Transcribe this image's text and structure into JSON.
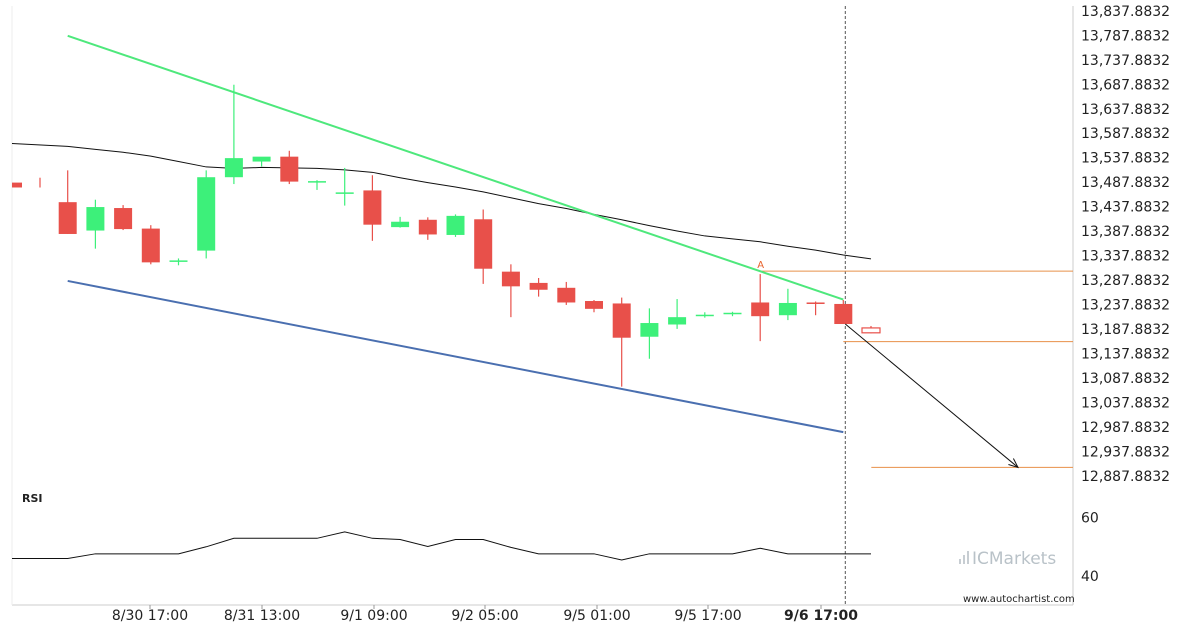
{
  "chart_data": {
    "type": "candlestick",
    "main": {
      "y_ticks": [
        "13,837.8832",
        "13,787.8832",
        "13,737.8832",
        "13,687.8832",
        "13,637.8832",
        "13,587.8832",
        "13,537.8832",
        "13,487.8832",
        "13,437.8832",
        "13,387.8832",
        "13,337.8832",
        "13,287.8832",
        "13,237.8832",
        "13,187.8832",
        "13,137.8832",
        "13,087.8832",
        "13,037.8832",
        "12,987.8832",
        "12,937.8832",
        "12,887.8832"
      ],
      "ylim": [
        12862.88,
        13847.88
      ],
      "candles": [
        {
          "o": 13487,
          "h": 13497,
          "l": 13477,
          "c": 13477
        },
        {
          "o": 13447,
          "h": 13512,
          "l": 13382,
          "c": 13382
        },
        {
          "o": 13389,
          "h": 13452,
          "l": 13352,
          "c": 13437
        },
        {
          "o": 13435,
          "h": 13441,
          "l": 13390,
          "c": 13392
        },
        {
          "o": 13393,
          "h": 13400,
          "l": 13320,
          "c": 13324
        },
        {
          "o": 13325,
          "h": 13332,
          "l": 13318,
          "c": 13328
        },
        {
          "o": 13348,
          "h": 13512,
          "l": 13332,
          "c": 13498
        },
        {
          "o": 13498,
          "h": 13687,
          "l": 13484,
          "c": 13537
        },
        {
          "o": 13530,
          "h": 13535,
          "l": 13520,
          "c": 13540
        },
        {
          "o": 13540,
          "h": 13552,
          "l": 13484,
          "c": 13489
        },
        {
          "o": 13488,
          "h": 13492,
          "l": 13472,
          "c": 13490
        },
        {
          "o": 13466,
          "h": 13517,
          "l": 13440,
          "c": 13467
        },
        {
          "o": 13471,
          "h": 13502,
          "l": 13368,
          "c": 13401
        },
        {
          "o": 13396,
          "h": 13417,
          "l": 13395,
          "c": 13407
        },
        {
          "o": 13411,
          "h": 13416,
          "l": 13370,
          "c": 13381
        },
        {
          "o": 13380,
          "h": 13422,
          "l": 13376,
          "c": 13419
        },
        {
          "o": 13412,
          "h": 13432,
          "l": 13280,
          "c": 13311
        },
        {
          "o": 13305,
          "h": 13320,
          "l": 13212,
          "c": 13275
        },
        {
          "o": 13282,
          "h": 13292,
          "l": 13254,
          "c": 13268
        },
        {
          "o": 13272,
          "h": 13284,
          "l": 13237,
          "c": 13242
        },
        {
          "o": 13245,
          "h": 13247,
          "l": 13222,
          "c": 13229
        },
        {
          "o": 13240,
          "h": 13252,
          "l": 13070,
          "c": 13170
        },
        {
          "o": 13172,
          "h": 13230,
          "l": 13127,
          "c": 13200
        },
        {
          "o": 13197,
          "h": 13249,
          "l": 13188,
          "c": 13212
        },
        {
          "o": 13214,
          "h": 13222,
          "l": 13211,
          "c": 13217
        },
        {
          "o": 13218,
          "h": 13223,
          "l": 13214,
          "c": 13221
        },
        {
          "o": 13242,
          "h": 13300,
          "l": 13163,
          "c": 13214
        },
        {
          "o": 13216,
          "h": 13270,
          "l": 13206,
          "c": 13241
        },
        {
          "o": 13242,
          "h": 13244,
          "l": 13216,
          "c": 13239
        },
        {
          "o": 13239,
          "h": 13247,
          "l": 13198,
          "c": 13198
        },
        {
          "o": 13190,
          "h": 13194,
          "l": 13179,
          "c": 13180
        }
      ],
      "moving_average": [
        13567,
        13561,
        13555,
        13549,
        13541,
        13530,
        13519,
        13516,
        13518,
        13517,
        13516,
        13513,
        13508,
        13497,
        13487,
        13478,
        13468,
        13456,
        13444,
        13434,
        13422,
        13411,
        13399,
        13388,
        13378,
        13372,
        13366,
        13357,
        13349,
        13339,
        13331
      ],
      "resistance_line": {
        "x": [
          1,
          29
        ],
        "y": [
          13787,
          13248
        ]
      },
      "support_line": {
        "x": [
          1,
          29
        ],
        "y": [
          13286,
          12977
        ]
      },
      "levels": [
        {
          "name": "pattern-high",
          "value": 13306
        },
        {
          "name": "breakout",
          "value": 13162
        },
        {
          "name": "target",
          "value": 12905
        }
      ],
      "forecast_arrow": {
        "from": {
          "x": 29,
          "y": 13198
        },
        "to": {
          "x": 36,
          "y": 12905
        }
      },
      "pattern_point_label": "A"
    },
    "rsi": {
      "label": "RSI",
      "y_ticks": [
        "60",
        "40"
      ],
      "ylim": [
        30,
        70
      ],
      "values": [
        45.9,
        45.9,
        47.5,
        47.5,
        47.5,
        47.5,
        49.9,
        52.8,
        52.8,
        52.8,
        52.8,
        55,
        52.8,
        52.4,
        50,
        52.4,
        52.4,
        49.7,
        47.5,
        47.5,
        47.5,
        45.4,
        47.5,
        47.5,
        47.5,
        47.5,
        49.4,
        47.5,
        47.5,
        47.5,
        47.5
      ]
    },
    "x_ticks": [
      {
        "label": "8/30 17:00",
        "bold": false
      },
      {
        "label": "8/31 13:00",
        "bold": false
      },
      {
        "label": "9/1 09:00",
        "bold": false
      },
      {
        "label": "9/2 05:00",
        "bold": false
      },
      {
        "label": "9/5 01:00",
        "bold": false
      },
      {
        "label": "9/5 17:00",
        "bold": false
      },
      {
        "label": "9/6 17:00",
        "bold": true
      }
    ],
    "watermark": "www.autochartist.com",
    "broker_logo": "ICMarkets"
  },
  "colors": {
    "bull": "#3df07a",
    "bear": "#e8504a",
    "resistance": "#4ee87c",
    "support": "#4a6fb0",
    "level": "#e8904a",
    "moving_average": "#111111",
    "rsi": "#111111",
    "grid": "#dddddd"
  }
}
